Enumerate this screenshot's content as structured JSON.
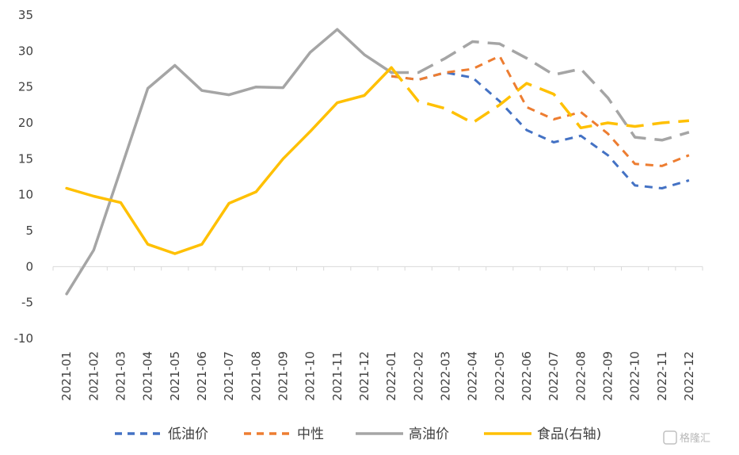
{
  "chart_data": {
    "type": "line",
    "categories": [
      "2021-01",
      "2021-02",
      "2021-03",
      "2021-04",
      "2021-05",
      "2021-06",
      "2021-07",
      "2021-08",
      "2021-09",
      "2021-10",
      "2021-11",
      "2021-12",
      "2022-01",
      "2022-02",
      "2022-03",
      "2022-04",
      "2022-05",
      "2022-06",
      "2022-07",
      "2022-08",
      "2022-09",
      "2022-10",
      "2022-11",
      "2022-12"
    ],
    "ylim": [
      -10,
      35
    ],
    "yticks": [
      -10,
      -5,
      0,
      5,
      10,
      15,
      20,
      25,
      30,
      35
    ],
    "series": [
      {
        "name": "低油价",
        "color": "#4472C4",
        "dashed": true,
        "values": [
          null,
          null,
          null,
          null,
          null,
          null,
          null,
          null,
          null,
          null,
          null,
          null,
          26.5,
          26.0,
          27.0,
          26.3,
          23.0,
          19.0,
          17.3,
          18.2,
          15.5,
          11.3,
          10.9,
          12.0
        ]
      },
      {
        "name": "中性",
        "color": "#ED7D31",
        "dashed": true,
        "values": [
          null,
          null,
          null,
          null,
          null,
          null,
          null,
          null,
          null,
          null,
          null,
          null,
          26.5,
          26.0,
          27.0,
          27.5,
          29.3,
          22.2,
          20.5,
          21.5,
          18.5,
          14.3,
          14.0,
          15.5
        ]
      },
      {
        "name": "高油价",
        "color": "#A5A5A5",
        "dashed": false,
        "split_at": "2022-01",
        "values": [
          -3.8,
          2.3,
          13.5,
          24.8,
          28.0,
          24.5,
          23.9,
          25.0,
          24.9,
          29.8,
          33.0,
          29.5,
          27.0,
          27.0,
          29.0,
          31.3,
          31.0,
          29.0,
          26.7,
          27.5,
          23.5,
          18.0,
          17.6,
          18.7
        ]
      },
      {
        "name": "食品(右轴)",
        "color": "#FFC000",
        "dashed": false,
        "split_at": "2022-01",
        "values": [
          10.9,
          9.8,
          8.9,
          3.1,
          1.8,
          3.1,
          8.8,
          10.4,
          15.0,
          18.8,
          22.8,
          23.8,
          27.7,
          23.0,
          22.0,
          20.0,
          22.5,
          25.5,
          24.0,
          19.3,
          20.0,
          19.5,
          20.0,
          20.3
        ]
      }
    ],
    "legend_position": "bottom",
    "grid": false
  },
  "watermark": "格隆汇"
}
